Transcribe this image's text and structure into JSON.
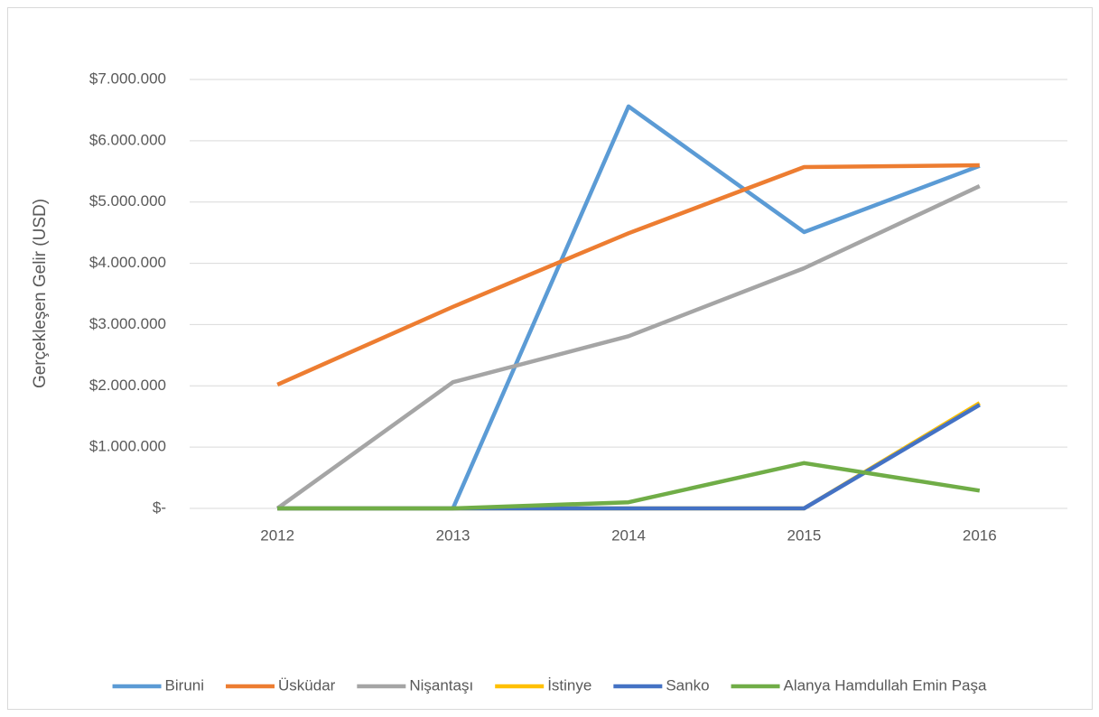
{
  "chart_data": {
    "type": "line",
    "y_label": "Gerçekleşen Gelir (USD)",
    "categories": [
      "2012",
      "2013",
      "2014",
      "2015",
      "2016"
    ],
    "series": [
      {
        "name": "Biruni",
        "color": "#5b9bd5",
        "values": [
          0,
          0,
          6560000,
          4510000,
          5590000
        ]
      },
      {
        "name": "Üsküdar",
        "color": "#ed7d31",
        "values": [
          2020000,
          3290000,
          4490000,
          5570000,
          5600000
        ]
      },
      {
        "name": "Nişantaşı",
        "color": "#a5a5a5",
        "values": [
          0,
          2060000,
          2810000,
          3920000,
          5260000
        ]
      },
      {
        "name": "İstinye",
        "color": "#ffc000",
        "values": [
          0,
          0,
          0,
          0,
          1720000
        ]
      },
      {
        "name": "Sanko",
        "color": "#4472c4",
        "values": [
          0,
          0,
          0,
          0,
          1690000
        ]
      },
      {
        "name": "Alanya Hamdullah Emin Paşa",
        "color": "#70ad47",
        "values": [
          0,
          0,
          100000,
          740000,
          290000
        ]
      }
    ],
    "ylim": [
      0,
      7000000
    ],
    "yticks": [
      {
        "value": 0,
        "label": "$-"
      },
      {
        "value": 1000000,
        "label": "$1.000.000"
      },
      {
        "value": 2000000,
        "label": "$2.000.000"
      },
      {
        "value": 3000000,
        "label": "$3.000.000"
      },
      {
        "value": 4000000,
        "label": "$4.000.000"
      },
      {
        "value": 5000000,
        "label": "$5.000.000"
      },
      {
        "value": 6000000,
        "label": "$6.000.000"
      },
      {
        "value": 7000000,
        "label": "$7.000.000"
      }
    ],
    "grid": true,
    "legend": "bottom"
  }
}
